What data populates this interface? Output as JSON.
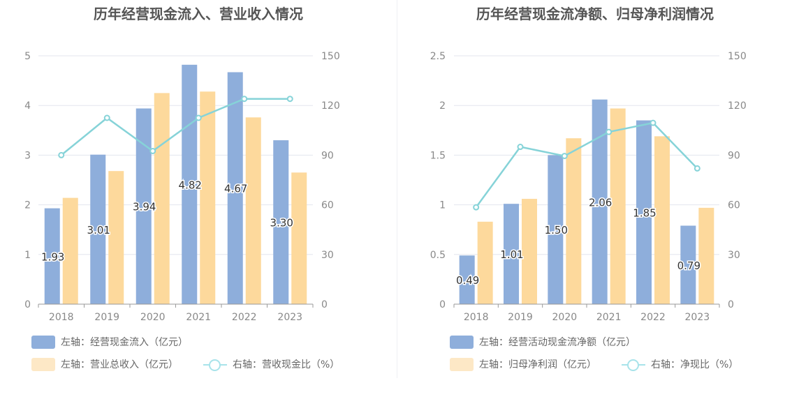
{
  "colors": {
    "bar_left": "#8eaedb",
    "bar_right": "#fdd99c",
    "line": "#86d3d8",
    "legend_bar_right": "#fde8c6",
    "legend_line": "#a8e3ea",
    "grid": "#e3e6ee",
    "axis_text": "#888888"
  },
  "chart_data": [
    {
      "type": "bar",
      "title": "历年经营现金流入、营业收入情况",
      "categories": [
        "2018",
        "2019",
        "2020",
        "2021",
        "2022",
        "2023"
      ],
      "y_left": {
        "ticks": [
          "0",
          "1",
          "2",
          "3",
          "4",
          "5"
        ],
        "ylim": [
          0,
          5
        ]
      },
      "y_right": {
        "ticks": [
          "0",
          "30",
          "60",
          "90",
          "120",
          "150"
        ],
        "ylim": [
          0,
          150
        ]
      },
      "series": [
        {
          "name": "左轴：经营现金流入（亿元）",
          "type": "bar",
          "axis": "left",
          "values": [
            1.93,
            3.01,
            3.94,
            4.82,
            4.67,
            3.3
          ],
          "labels": [
            "1.93",
            "3.01",
            "3.94",
            "4.82",
            "4.67",
            "3.30"
          ]
        },
        {
          "name": "左轴：营业总收入（亿元）",
          "type": "bar",
          "axis": "left",
          "values": [
            2.14,
            2.68,
            4.25,
            4.28,
            3.76,
            2.65
          ]
        },
        {
          "name": "右轴：营收现金比（%）",
          "type": "line",
          "axis": "right",
          "values": [
            90,
            112.5,
            92.5,
            112.5,
            124,
            124
          ]
        }
      ]
    },
    {
      "type": "bar",
      "title": "历年经营现金流净额、归母净利润情况",
      "categories": [
        "2018",
        "2019",
        "2020",
        "2021",
        "2022",
        "2023"
      ],
      "y_left": {
        "ticks": [
          "0",
          "0.5",
          "1",
          "1.5",
          "2",
          "2.5"
        ],
        "ylim": [
          0,
          2.5
        ]
      },
      "y_right": {
        "ticks": [
          "0",
          "30",
          "60",
          "90",
          "120",
          "150"
        ],
        "ylim": [
          0,
          150
        ]
      },
      "series": [
        {
          "name": "左轴：经营活动现金流净额（亿元）",
          "type": "bar",
          "axis": "left",
          "values": [
            0.49,
            1.01,
            1.5,
            2.06,
            1.85,
            0.79
          ],
          "labels": [
            "0.49",
            "1.01",
            "1.50",
            "2.06",
            "1.85",
            "0.79"
          ]
        },
        {
          "name": "左轴：归母净利润（亿元）",
          "type": "bar",
          "axis": "left",
          "values": [
            0.83,
            1.06,
            1.67,
            1.97,
            1.69,
            0.97
          ]
        },
        {
          "name": "右轴：净现比（%）",
          "type": "line",
          "axis": "right",
          "values": [
            58.5,
            95,
            89.5,
            104,
            109.5,
            82
          ]
        }
      ]
    }
  ]
}
